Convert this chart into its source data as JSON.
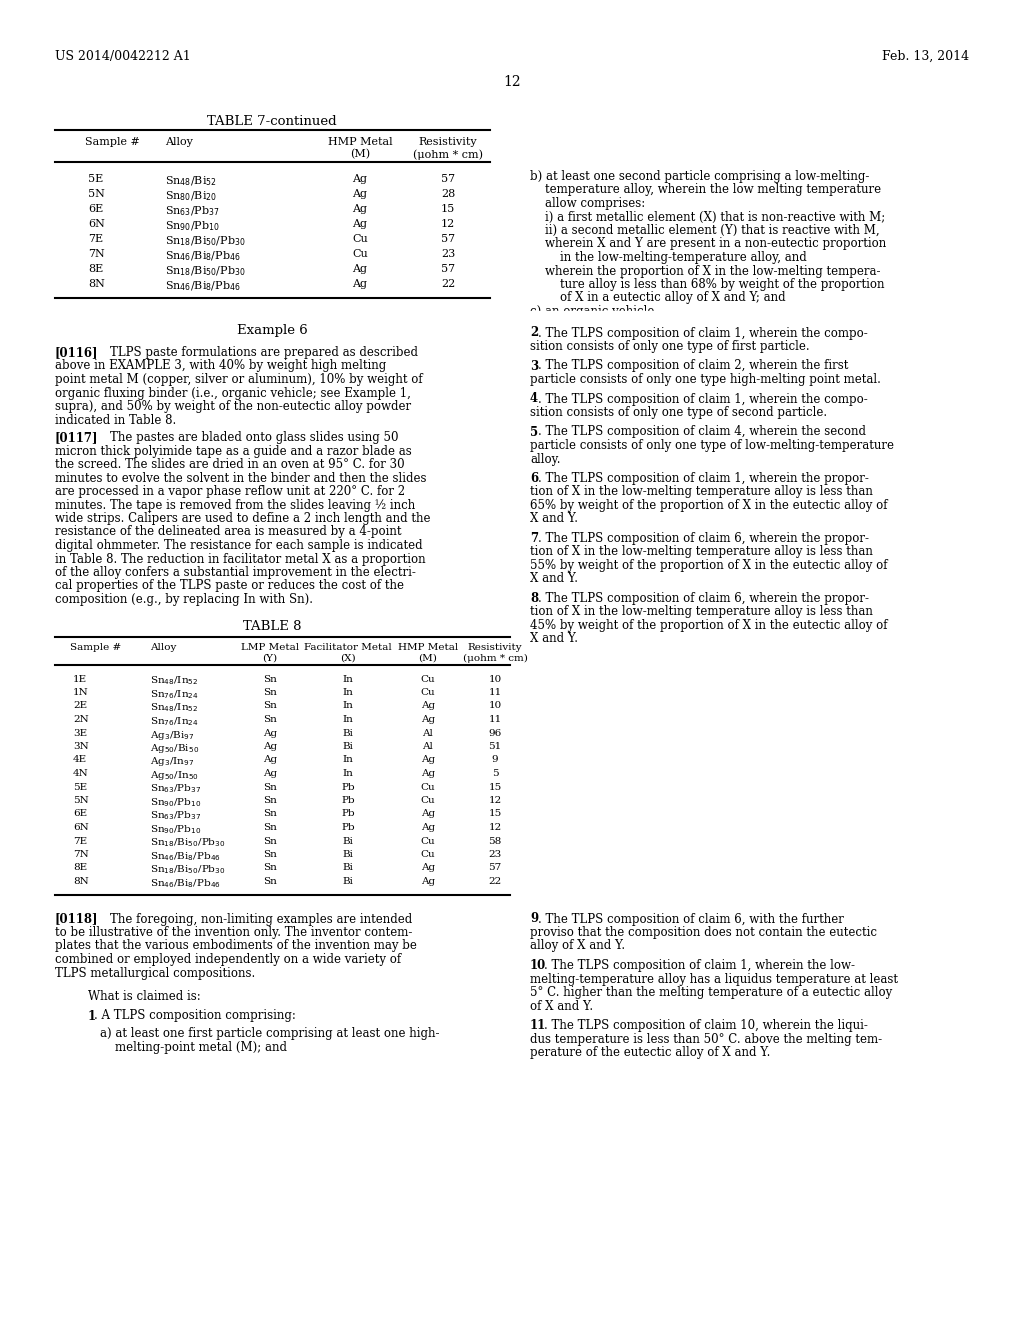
{
  "page_header_left": "US 2014/0042212 A1",
  "page_header_right": "Feb. 13, 2014",
  "page_number": "12",
  "t7_title": "TABLE 7-continued",
  "t7_samples": [
    "5E",
    "5N",
    "6E",
    "6N",
    "7E",
    "7N",
    "8E",
    "8N"
  ],
  "t7_alloys": [
    "Sn$_{48}$/Bi$_{52}$",
    "Sn$_{80}$/Bi$_{20}$",
    "Sn$_{63}$/Pb$_{37}$",
    "Sn$_{90}$/Pb$_{10}$",
    "Sn$_{18}$/Bi$_{50}$/Pb$_{30}$",
    "Sn$_{46}$/Bi$_{8}$/Pb$_{46}$",
    "Sn$_{18}$/Bi$_{50}$/Pb$_{30}$",
    "Sn$_{46}$/Bi$_{8}$/Pb$_{46}$"
  ],
  "t7_hmp": [
    "Ag",
    "Ag",
    "Ag",
    "Ag",
    "Cu",
    "Cu",
    "Ag",
    "Ag"
  ],
  "t7_res": [
    "57",
    "28",
    "15",
    "12",
    "57",
    "23",
    "57",
    "22"
  ],
  "ex6_title": "Example 6",
  "t8_title": "TABLE 8",
  "t8_samples": [
    "1E",
    "1N",
    "2E",
    "2N",
    "3E",
    "3N",
    "4E",
    "4N",
    "5E",
    "5N",
    "6E",
    "6N",
    "7E",
    "7N",
    "8E",
    "8N"
  ],
  "t8_alloys": [
    "Sn$_{48}$/In$_{52}$",
    "Sn$_{76}$/In$_{24}$",
    "Sn$_{48}$/In$_{52}$",
    "Sn$_{76}$/In$_{24}$",
    "Ag$_{3}$/Bi$_{97}$",
    "Ag$_{50}$/Bi$_{50}$",
    "Ag$_{3}$/In$_{97}$",
    "Ag$_{50}$/In$_{50}$",
    "Sn$_{63}$/Pb$_{37}$",
    "Sn$_{90}$/Pb$_{10}$",
    "Sn$_{63}$/Pb$_{37}$",
    "Sn$_{90}$/Pb$_{10}$",
    "Sn$_{18}$/Bi$_{50}$/Pb$_{30}$",
    "Sn$_{46}$/Bi$_{8}$/Pb$_{46}$",
    "Sn$_{18}$/Bi$_{50}$/Pb$_{30}$",
    "Sn$_{46}$/Bi$_{8}$/Pb$_{46}$"
  ],
  "t8_lmp": [
    "Sn",
    "Sn",
    "Sn",
    "Sn",
    "Ag",
    "Ag",
    "Ag",
    "Ag",
    "Sn",
    "Sn",
    "Sn",
    "Sn",
    "Sn",
    "Sn",
    "Sn",
    "Sn"
  ],
  "t8_fac": [
    "In",
    "In",
    "In",
    "In",
    "Bi",
    "Bi",
    "In",
    "In",
    "Pb",
    "Pb",
    "Pb",
    "Pb",
    "Bi",
    "Bi",
    "Bi",
    "Bi"
  ],
  "t8_hmp": [
    "Cu",
    "Cu",
    "Ag",
    "Ag",
    "Al",
    "Al",
    "Ag",
    "Ag",
    "Cu",
    "Cu",
    "Ag",
    "Ag",
    "Cu",
    "Cu",
    "Ag",
    "Ag"
  ],
  "t8_res": [
    "10",
    "11",
    "10",
    "11",
    "96",
    "51",
    "9",
    "5",
    "15",
    "12",
    "15",
    "12",
    "58",
    "23",
    "57",
    "22"
  ]
}
